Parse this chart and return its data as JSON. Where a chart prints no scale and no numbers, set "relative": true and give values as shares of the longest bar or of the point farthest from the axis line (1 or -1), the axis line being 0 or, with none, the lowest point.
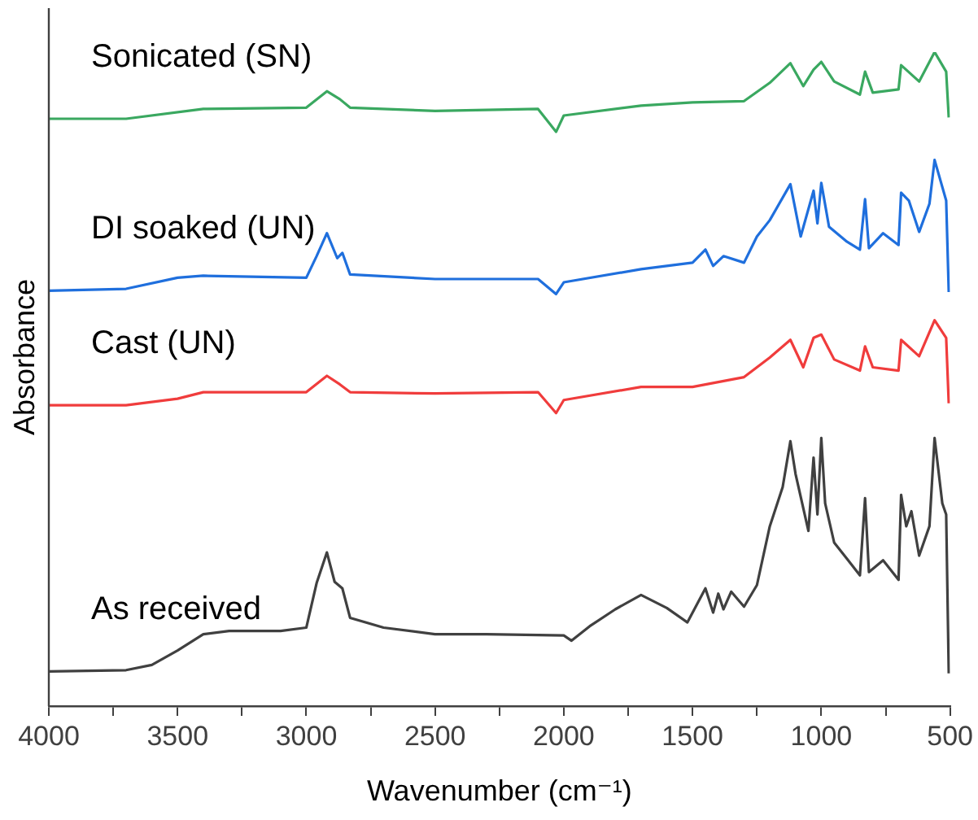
{
  "chart_data": {
    "type": "line",
    "relative": true,
    "xlabel": "Wavenumber (cm⁻¹)",
    "ylabel": "Absorbance",
    "legend": false,
    "marker": "none",
    "line_style": "solid",
    "xlim": [
      4000,
      500
    ],
    "xticks": [
      4000,
      {
        "value": 3750,
        "label": null
      },
      3500,
      {
        "value": 3250,
        "label": null
      },
      3000,
      {
        "value": 2750,
        "label": null
      },
      2500,
      {
        "value": 2250,
        "label": null
      },
      2000,
      {
        "value": 1750,
        "label": null
      },
      1500,
      {
        "value": 1250,
        "label": null
      },
      1000,
      {
        "value": 750,
        "label": null
      },
      500
    ],
    "series": [
      {
        "name": "Sonicated (SN)",
        "color": "#3aa860",
        "x": [
          4000,
          3700,
          3400,
          3000,
          2920,
          2870,
          2830,
          2500,
          2100,
          2030,
          2000,
          1700,
          1500,
          1300,
          1200,
          1120,
          1070,
          1030,
          1000,
          950,
          850,
          830,
          800,
          700,
          690,
          620,
          560,
          515,
          505
        ],
        "values": [
          0.898,
          0.898,
          0.913,
          0.915,
          0.94,
          0.928,
          0.915,
          0.91,
          0.913,
          0.878,
          0.903,
          0.918,
          0.923,
          0.925,
          0.953,
          0.983,
          0.948,
          0.973,
          0.985,
          0.955,
          0.935,
          0.97,
          0.938,
          0.943,
          0.98,
          0.955,
          1,
          0.97,
          0.9
        ]
      },
      {
        "name": "DI soaked (UN)",
        "color": "#1f6fdd",
        "x": [
          4000,
          3700,
          3500,
          3400,
          3000,
          2960,
          2920,
          2880,
          2860,
          2830,
          2500,
          2100,
          2030,
          2000,
          1700,
          1500,
          1450,
          1420,
          1380,
          1300,
          1250,
          1200,
          1120,
          1080,
          1030,
          1015,
          1000,
          970,
          900,
          850,
          830,
          815,
          760,
          700,
          690,
          660,
          620,
          580,
          560,
          515,
          505
        ],
        "values": [
          0.635,
          0.638,
          0.655,
          0.658,
          0.655,
          0.688,
          0.723,
          0.685,
          0.693,
          0.66,
          0.653,
          0.653,
          0.63,
          0.648,
          0.668,
          0.678,
          0.698,
          0.673,
          0.688,
          0.678,
          0.718,
          0.743,
          0.798,
          0.718,
          0.788,
          0.738,
          0.8,
          0.733,
          0.71,
          0.698,
          0.775,
          0.7,
          0.723,
          0.705,
          0.785,
          0.773,
          0.725,
          0.768,
          0.835,
          0.773,
          0.633
        ]
      },
      {
        "name": "Cast (UN)",
        "color": "#f03c3c",
        "x": [
          4000,
          3700,
          3500,
          3400,
          3000,
          2920,
          2870,
          2830,
          2500,
          2100,
          2030,
          2000,
          1700,
          1500,
          1300,
          1200,
          1120,
          1070,
          1030,
          1000,
          950,
          850,
          830,
          800,
          700,
          690,
          620,
          560,
          515,
          505
        ],
        "values": [
          0.46,
          0.46,
          0.47,
          0.48,
          0.48,
          0.505,
          0.492,
          0.48,
          0.478,
          0.48,
          0.448,
          0.468,
          0.488,
          0.488,
          0.503,
          0.533,
          0.56,
          0.518,
          0.563,
          0.568,
          0.53,
          0.513,
          0.55,
          0.518,
          0.513,
          0.56,
          0.535,
          0.59,
          0.563,
          0.463
        ]
      },
      {
        "name": "As received",
        "color": "#404040",
        "x": [
          4000,
          3700,
          3600,
          3500,
          3400,
          3300,
          3100,
          3000,
          2960,
          2920,
          2890,
          2860,
          2830,
          2700,
          2500,
          2300,
          2000,
          1970,
          1900,
          1800,
          1700,
          1600,
          1520,
          1450,
          1420,
          1400,
          1380,
          1350,
          1300,
          1250,
          1200,
          1150,
          1120,
          1100,
          1050,
          1030,
          1015,
          1000,
          985,
          950,
          900,
          850,
          830,
          815,
          760,
          700,
          690,
          670,
          650,
          620,
          580,
          560,
          530,
          515,
          505
        ],
        "values": [
          0.053,
          0.055,
          0.063,
          0.085,
          0.11,
          0.115,
          0.115,
          0.12,
          0.188,
          0.235,
          0.19,
          0.18,
          0.135,
          0.12,
          0.11,
          0.11,
          0.108,
          0.1,
          0.122,
          0.148,
          0.17,
          0.15,
          0.128,
          0.18,
          0.143,
          0.172,
          0.148,
          0.175,
          0.152,
          0.185,
          0.275,
          0.335,
          0.405,
          0.355,
          0.268,
          0.38,
          0.293,
          0.41,
          0.31,
          0.25,
          0.225,
          0.2,
          0.318,
          0.205,
          0.223,
          0.193,
          0.323,
          0.275,
          0.298,
          0.23,
          0.275,
          0.41,
          0.31,
          0.293,
          0.05
        ]
      }
    ]
  }
}
